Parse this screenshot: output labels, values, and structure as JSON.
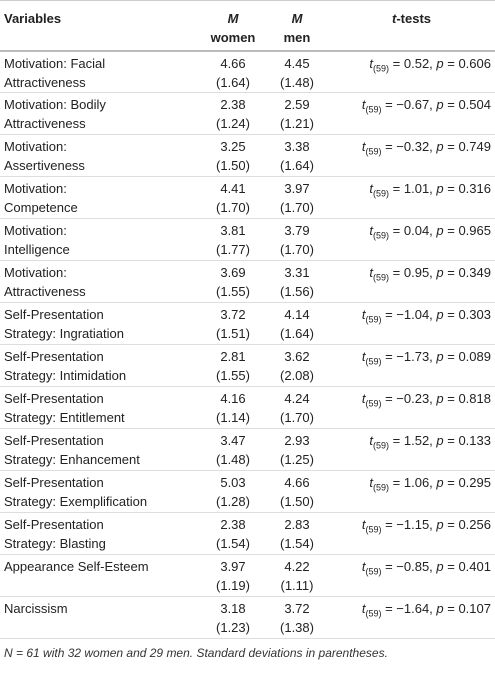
{
  "table": {
    "header": {
      "variables": "Variables",
      "women": [
        "M",
        "women"
      ],
      "men": [
        "M",
        "men"
      ],
      "ttests": [
        "t",
        "-tests"
      ]
    },
    "rows": [
      {
        "variable": [
          "Motivation: Facial",
          "Attractiveness"
        ],
        "women": [
          "4.66",
          "(1.64)"
        ],
        "men": [
          "4.45",
          "(1.48)"
        ],
        "t": [
          "t",
          "(59)",
          " = 0.52, ",
          "p",
          " = 0.606"
        ]
      },
      {
        "variable": [
          "Motivation: Bodily",
          "Attractiveness"
        ],
        "women": [
          "2.38",
          "(1.24)"
        ],
        "men": [
          "2.59",
          "(1.21)"
        ],
        "t": [
          "t",
          "(59)",
          " = −0.67, ",
          "p",
          " = 0.504"
        ]
      },
      {
        "variable": [
          "Motivation:",
          "Assertiveness"
        ],
        "women": [
          "3.25",
          "(1.50)"
        ],
        "men": [
          "3.38",
          "(1.64)"
        ],
        "t": [
          "t",
          "(59)",
          " = −0.32, ",
          "p",
          " = 0.749"
        ]
      },
      {
        "variable": [
          "Motivation:",
          "Competence"
        ],
        "women": [
          "4.41",
          "(1.70)"
        ],
        "men": [
          "3.97",
          "(1.70)"
        ],
        "t": [
          "t",
          "(59)",
          " = 1.01, ",
          "p",
          " = 0.316"
        ]
      },
      {
        "variable": [
          "Motivation:",
          "Intelligence"
        ],
        "women": [
          "3.81",
          "(1.77)"
        ],
        "men": [
          "3.79",
          "(1.70)"
        ],
        "t": [
          "t",
          "(59)",
          " = 0.04, ",
          "p",
          " = 0.965"
        ]
      },
      {
        "variable": [
          "Motivation:",
          "Attractiveness"
        ],
        "women": [
          "3.69",
          "(1.55)"
        ],
        "men": [
          "3.31",
          "(1.56)"
        ],
        "t": [
          "t",
          "(59)",
          " = 0.95, ",
          "p",
          " = 0.349"
        ]
      },
      {
        "variable": [
          "Self-Presentation",
          "Strategy: Ingratiation"
        ],
        "women": [
          "3.72",
          "(1.51)"
        ],
        "men": [
          "4.14",
          "(1.64)"
        ],
        "t": [
          "t",
          "(59)",
          " = −1.04, ",
          "p",
          " = 0.303"
        ]
      },
      {
        "variable": [
          "Self-Presentation",
          "Strategy: Intimidation"
        ],
        "women": [
          "2.81",
          "(1.55)"
        ],
        "men": [
          "3.62",
          "(2.08)"
        ],
        "t": [
          "t",
          "(59)",
          " = −1.73, ",
          "p",
          " = 0.089"
        ]
      },
      {
        "variable": [
          "Self-Presentation",
          "Strategy: Entitlement"
        ],
        "women": [
          "4.16",
          "(1.14)"
        ],
        "men": [
          "4.24",
          "(1.70)"
        ],
        "t": [
          "t",
          "(59)",
          " = −0.23, ",
          "p",
          " = 0.818"
        ]
      },
      {
        "variable": [
          "Self-Presentation",
          "Strategy: Enhancement"
        ],
        "women": [
          "3.47",
          "(1.48)"
        ],
        "men": [
          "2.93",
          "(1.25)"
        ],
        "t": [
          "t",
          "(59)",
          " = 1.52, ",
          "p",
          " = 0.133"
        ]
      },
      {
        "variable": [
          "Self-Presentation",
          "Strategy: Exemplification"
        ],
        "women": [
          "5.03",
          "(1.28)"
        ],
        "men": [
          "4.66",
          "(1.50)"
        ],
        "t": [
          "t",
          "(59)",
          " = 1.06, ",
          "p",
          " = 0.295"
        ]
      },
      {
        "variable": [
          "Self-Presentation",
          "Strategy: Blasting"
        ],
        "women": [
          "2.38",
          "(1.54)"
        ],
        "men": [
          "2.83",
          "(1.54)"
        ],
        "t": [
          "t",
          "(59)",
          " = −1.15, ",
          "p",
          " = 0.256"
        ]
      },
      {
        "variable": [
          "Appearance Self-Esteem"
        ],
        "women": [
          "3.97",
          "(1.19)"
        ],
        "men": [
          "4.22",
          "(1.11)"
        ],
        "t": [
          "t",
          "(59)",
          " = −0.85, ",
          "p",
          " = 0.401"
        ]
      },
      {
        "variable": [
          "Narcissism"
        ],
        "women": [
          "3.18",
          "(1.23)"
        ],
        "men": [
          "3.72",
          "(1.38)"
        ],
        "t": [
          "t",
          "(59)",
          " = −1.64, ",
          "p",
          " = 0.107"
        ]
      }
    ],
    "footnote": [
      "N",
      " = 61 with 32 women and 29 men. Standard deviations in parentheses."
    ]
  }
}
